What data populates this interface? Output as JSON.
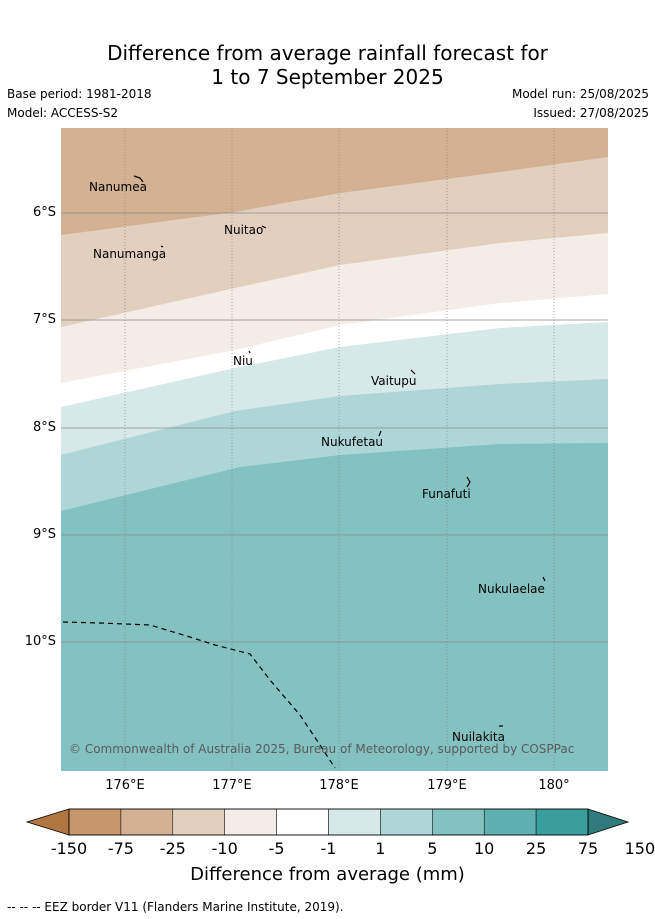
{
  "title_line1": "Difference from average rainfall forecast for",
  "title_line2": "1 to 7 September 2025",
  "base_period": "Base period: 1981-2018",
  "model": "Model: ACCESS-S2",
  "model_run": "Model run: 25/08/2025",
  "issued": "Issued: 27/08/2025",
  "lat_labels": [
    "6°S",
    "7°S",
    "8°S",
    "9°S",
    "10°S"
  ],
  "lon_labels": [
    "176°E",
    "177°E",
    "178°E",
    "179°E",
    "180°"
  ],
  "places": {
    "nanumea": "Nanumea",
    "nuitao": "Nuitao",
    "nanumanga": "Nanumanga",
    "niu": "Niu",
    "vaitupu": "Vaitupu",
    "nukufetau": "Nukufetau",
    "funafuti": "Funafuti",
    "nukulaelae": "Nukulaelae",
    "nuilakita": "Nuilakita"
  },
  "copyright": "© Commonwealth of Australia 2025, Bureau of Meteorology, supported by COSPPac",
  "colorbar": {
    "labels": [
      "-150",
      "-75",
      "-25",
      "-10",
      "-5",
      "-1",
      "1",
      "5",
      "10",
      "25",
      "75",
      "150"
    ],
    "colors": [
      "#b07840",
      "#c5976a",
      "#d3b192",
      "#e2cfbd",
      "#f4ece7",
      "#ffffff",
      "#d6e8e7",
      "#aed6d6",
      "#84c2c1",
      "#5fb0b0",
      "#3a9e9e",
      "#2f7b7b"
    ],
    "title": "Difference from average (mm)"
  },
  "footnote": "-- -- -- EEZ border V11 (Flanders Marine Institute, 2019)."
}
